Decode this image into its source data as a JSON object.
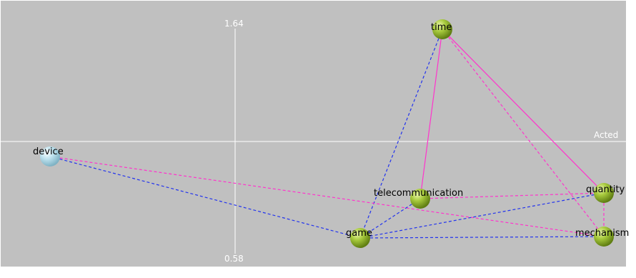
{
  "axes": {
    "vertical_top_label": "1.64",
    "vertical_bottom_label": "0.58",
    "horizontal_label": "Acted"
  },
  "colors": {
    "background": "#c0c0c0",
    "axis": "#ffffff",
    "edge_magenta": "#ff33cc",
    "edge_blue": "#2233ee",
    "node_green": "#a6c93c",
    "node_blue": "#bfe3ef"
  },
  "nodes": [
    {
      "id": "time",
      "label": "time",
      "color": "green"
    },
    {
      "id": "device",
      "label": "device",
      "color": "blue"
    },
    {
      "id": "telecommunication",
      "label": "telecommunication",
      "color": "green"
    },
    {
      "id": "quantity",
      "label": "quantity",
      "color": "green"
    },
    {
      "id": "game",
      "label": "game",
      "color": "green",
      "label_color": "#2233ee"
    },
    {
      "id": "mechanism",
      "label": "mechanism",
      "color": "green"
    }
  ],
  "edges": [
    {
      "from": "time",
      "to": "telecommunication",
      "color": "magenta",
      "style": "solid"
    },
    {
      "from": "time",
      "to": "quantity",
      "color": "magenta",
      "style": "solid"
    },
    {
      "from": "time",
      "to": "mechanism",
      "color": "magenta",
      "style": "dashed"
    },
    {
      "from": "time",
      "to": "game",
      "color": "blue",
      "style": "dashed"
    },
    {
      "from": "device",
      "to": "mechanism",
      "color": "magenta",
      "style": "dashed"
    },
    {
      "from": "device",
      "to": "game",
      "color": "blue",
      "style": "dashed"
    },
    {
      "from": "telecommunication",
      "to": "quantity",
      "color": "magenta",
      "style": "dashed"
    },
    {
      "from": "quantity",
      "to": "mechanism",
      "color": "magenta",
      "style": "dashed"
    },
    {
      "from": "game",
      "to": "quantity",
      "color": "blue",
      "style": "dashed"
    },
    {
      "from": "game",
      "to": "mechanism",
      "color": "blue",
      "style": "dashed"
    },
    {
      "from": "telecommunication",
      "to": "game",
      "color": "blue",
      "style": "dashed"
    }
  ]
}
